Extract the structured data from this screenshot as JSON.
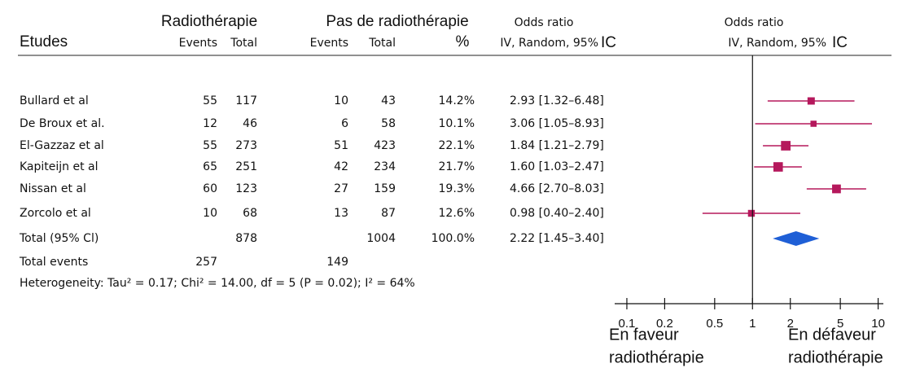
{
  "chart_data": {
    "type": "forest",
    "headers": {
      "group1": "Radiothérapie",
      "group2": "Pas de radiothérapie",
      "studies": "Etudes",
      "events1": "Events",
      "total1": "Total",
      "events2": "Events",
      "total2": "Total",
      "weight": "%",
      "or_title": "Odds ratio",
      "or_method": "IV, Random, 95%",
      "or_ic": "IC",
      "plot_title": "Odds ratio",
      "plot_method": "IV, Random, 95%",
      "plot_ic": "IC"
    },
    "studies": [
      {
        "name": "Bullard et al",
        "events1": 55,
        "total1": 117,
        "events2": 10,
        "total2": 43,
        "weight": 14.2,
        "weight_label": "14.2%",
        "or": 2.93,
        "ci_low": 1.32,
        "ci_high": 6.48,
        "ci_label": "2.93 [1.32–6.48]"
      },
      {
        "name": "De Broux et al.",
        "events1": 12,
        "total1": 46,
        "events2": 6,
        "total2": 58,
        "weight": 10.1,
        "weight_label": "10.1%",
        "or": 3.06,
        "ci_low": 1.05,
        "ci_high": 8.93,
        "ci_label": "3.06 [1.05–8.93]"
      },
      {
        "name": "El-Gazzaz et al",
        "events1": 55,
        "total1": 273,
        "events2": 51,
        "total2": 423,
        "weight": 22.1,
        "weight_label": "22.1%",
        "or": 1.84,
        "ci_low": 1.21,
        "ci_high": 2.79,
        "ci_label": "1.84 [1.21–2.79]"
      },
      {
        "name": "Kapiteijn et al",
        "events1": 65,
        "total1": 251,
        "events2": 42,
        "total2": 234,
        "weight": 21.7,
        "weight_label": "21.7%",
        "or": 1.6,
        "ci_low": 1.03,
        "ci_high": 2.47,
        "ci_label": "1.60 [1.03–2.47]"
      },
      {
        "name": "Nissan et al",
        "events1": 60,
        "total1": 123,
        "events2": 27,
        "total2": 159,
        "weight": 19.3,
        "weight_label": "19.3%",
        "or": 4.66,
        "ci_low": 2.7,
        "ci_high": 8.03,
        "ci_label": "4.66 [2.70–8.03]"
      },
      {
        "name": "Zorcolo et al",
        "events1": 10,
        "total1": 68,
        "events2": 13,
        "total2": 87,
        "weight": 12.6,
        "weight_label": "12.6%",
        "or": 0.98,
        "ci_low": 0.4,
        "ci_high": 2.4,
        "ci_label": "0.98 [0.40–2.40]"
      }
    ],
    "total": {
      "name": "Total (95% Cl)",
      "total1": 878,
      "total2": 1004,
      "weight": 100.0,
      "weight_label": "100.0%",
      "or": 2.22,
      "ci_low": 1.45,
      "ci_high": 3.4,
      "ci_label": "2.22 [1.45–3.40]"
    },
    "total_events": {
      "name": "Total events",
      "events1": 257,
      "events2": 149
    },
    "heterogeneity": "Heterogeneity: Tau² = 0.17; Chi² = 14.00, df = 5 (P = 0.02); I² = 64%",
    "x_scale": "log",
    "xlim": [
      0.08,
      11
    ],
    "xticks": [
      0.1,
      0.2,
      0.5,
      1,
      2,
      5,
      10
    ],
    "reference_line": 1,
    "marker_color": "#b5185c",
    "diamond_color": "#1f5fd6",
    "favours_left": [
      "En faveur",
      "radiothérapie"
    ],
    "favours_right": [
      "En défaveur",
      "radiothérapie"
    ]
  }
}
